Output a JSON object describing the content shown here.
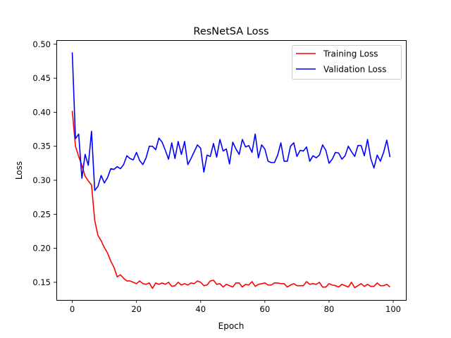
{
  "chart_data": {
    "type": "line",
    "title": "ResNetSA Loss",
    "xlabel": "Epoch",
    "ylabel": "Loss",
    "xlim": [
      -4.95,
      103.95
    ],
    "ylim": [
      0.124,
      0.506
    ],
    "xticks": [
      0,
      20,
      40,
      60,
      80,
      100
    ],
    "yticks": [
      0.15,
      0.2,
      0.25,
      0.3,
      0.35,
      0.4,
      0.45,
      0.5
    ],
    "xtick_labels": [
      "0",
      "20",
      "40",
      "60",
      "80",
      "100"
    ],
    "ytick_labels": [
      "0.15",
      "0.20",
      "0.25",
      "0.30",
      "0.35",
      "0.40",
      "0.45",
      "0.50"
    ],
    "grid": false,
    "legend_position": "top-right",
    "series": [
      {
        "name": "Training Loss",
        "color": "#ff0000",
        "values": [
          0.402,
          0.35,
          0.335,
          0.322,
          0.306,
          0.299,
          0.293,
          0.241,
          0.219,
          0.211,
          0.201,
          0.193,
          0.181,
          0.172,
          0.158,
          0.161,
          0.156,
          0.152,
          0.152,
          0.15,
          0.148,
          0.152,
          0.148,
          0.147,
          0.149,
          0.141,
          0.149,
          0.147,
          0.149,
          0.147,
          0.15,
          0.144,
          0.145,
          0.15,
          0.146,
          0.148,
          0.146,
          0.149,
          0.148,
          0.152,
          0.15,
          0.145,
          0.146,
          0.152,
          0.153,
          0.147,
          0.148,
          0.143,
          0.147,
          0.145,
          0.143,
          0.149,
          0.149,
          0.143,
          0.147,
          0.146,
          0.151,
          0.144,
          0.147,
          0.148,
          0.149,
          0.146,
          0.146,
          0.149,
          0.149,
          0.148,
          0.148,
          0.143,
          0.146,
          0.148,
          0.145,
          0.145,
          0.145,
          0.151,
          0.147,
          0.148,
          0.147,
          0.15,
          0.143,
          0.143,
          0.148,
          0.146,
          0.145,
          0.143,
          0.147,
          0.145,
          0.143,
          0.15,
          0.142,
          0.145,
          0.148,
          0.144,
          0.147,
          0.144,
          0.144,
          0.149,
          0.145,
          0.145,
          0.147,
          0.143
        ]
      },
      {
        "name": "Validation Loss",
        "color": "#0000ff",
        "values": [
          0.488,
          0.361,
          0.368,
          0.303,
          0.338,
          0.322,
          0.372,
          0.285,
          0.291,
          0.307,
          0.296,
          0.304,
          0.317,
          0.316,
          0.32,
          0.317,
          0.323,
          0.336,
          0.332,
          0.33,
          0.341,
          0.329,
          0.323,
          0.333,
          0.35,
          0.35,
          0.345,
          0.362,
          0.356,
          0.344,
          0.331,
          0.355,
          0.332,
          0.357,
          0.338,
          0.357,
          0.323,
          0.332,
          0.342,
          0.352,
          0.347,
          0.312,
          0.337,
          0.335,
          0.354,
          0.334,
          0.36,
          0.343,
          0.346,
          0.324,
          0.356,
          0.346,
          0.338,
          0.36,
          0.349,
          0.351,
          0.341,
          0.368,
          0.333,
          0.352,
          0.346,
          0.328,
          0.326,
          0.326,
          0.337,
          0.355,
          0.328,
          0.328,
          0.35,
          0.355,
          0.335,
          0.344,
          0.343,
          0.349,
          0.328,
          0.336,
          0.333,
          0.337,
          0.352,
          0.344,
          0.325,
          0.331,
          0.341,
          0.34,
          0.331,
          0.336,
          0.35,
          0.342,
          0.335,
          0.351,
          0.351,
          0.336,
          0.36,
          0.332,
          0.318,
          0.337,
          0.328,
          0.341,
          0.359,
          0.334
        ]
      }
    ]
  }
}
